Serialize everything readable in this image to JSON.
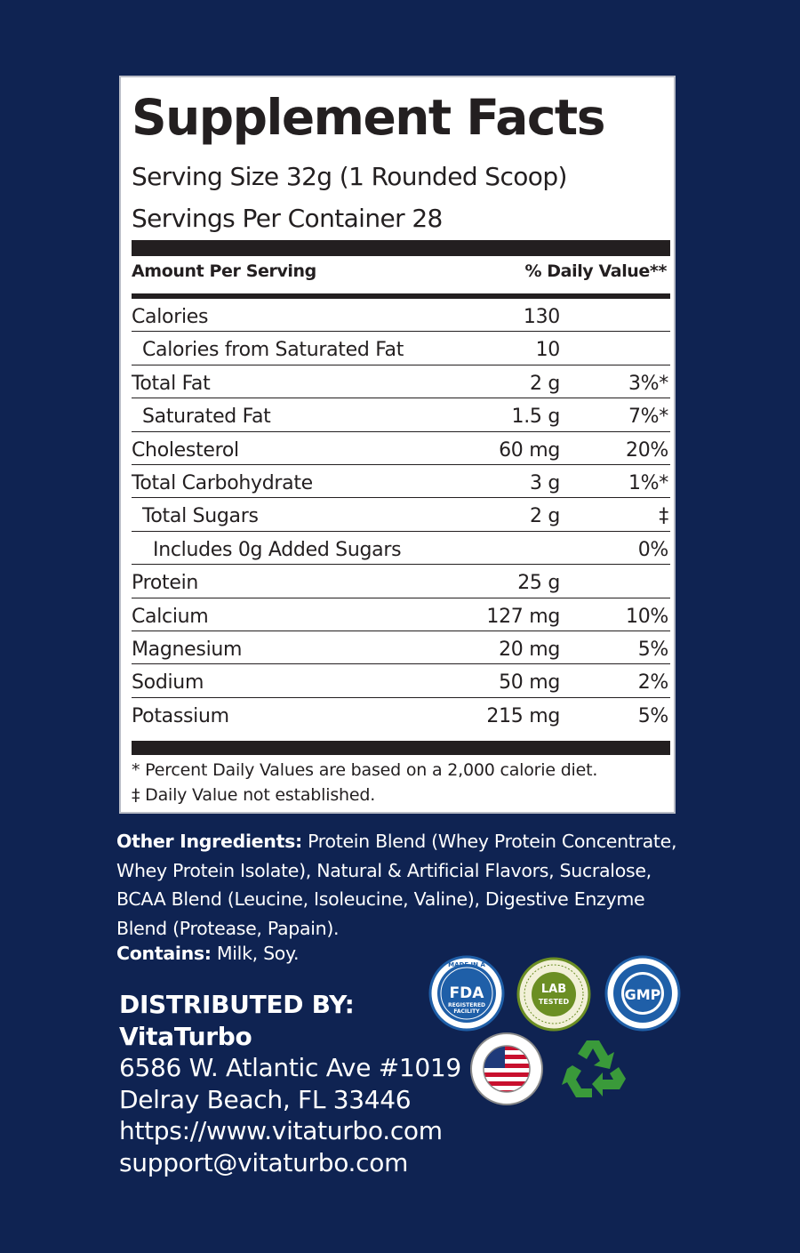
{
  "panel": {
    "title": "Supplement Facts",
    "serving_size": "Serving Size 32g (1 Rounded Scoop)",
    "servings_per_container": "Servings Per Container  28",
    "header_left": "Amount Per Serving",
    "header_right": "% Daily Value**",
    "rows": [
      {
        "name": "Calories",
        "amount": "130",
        "dv": "",
        "indent": 0
      },
      {
        "name": "Calories from Saturated Fat",
        "amount": "10",
        "dv": "",
        "indent": 1
      },
      {
        "name": "Total Fat",
        "amount": "2 g",
        "dv": "3%*",
        "indent": 0
      },
      {
        "name": "Saturated Fat",
        "amount": "1.5 g",
        "dv": "7%*",
        "indent": 1
      },
      {
        "name": "Cholesterol",
        "amount": "60 mg",
        "dv": "20%",
        "indent": 0
      },
      {
        "name": "Total Carbohydrate",
        "amount": "3 g",
        "dv": "1%*",
        "indent": 0
      },
      {
        "name": "Total Sugars",
        "amount": "2 g",
        "dv": "‡",
        "indent": 1
      },
      {
        "name": "Includes 0g Added Sugars",
        "amount": "",
        "dv": "0%",
        "indent": 2
      },
      {
        "name": "Protein",
        "amount": "25 g",
        "dv": "",
        "indent": 0
      },
      {
        "name": "Calcium",
        "amount": "127 mg",
        "dv": "10%",
        "indent": 0
      },
      {
        "name": "Magnesium",
        "amount": "20 mg",
        "dv": "5%",
        "indent": 0
      },
      {
        "name": "Sodium",
        "amount": "50 mg",
        "dv": "2%",
        "indent": 0
      },
      {
        "name": "Potassium",
        "amount": "215 mg",
        "dv": "5%",
        "indent": 0
      }
    ],
    "footnote_1": "* Percent Daily Values are based on a 2,000 calorie diet.",
    "footnote_2": "‡ Daily Value not established."
  },
  "ingredients": {
    "label": "Other Ingredients:",
    "text": " Protein Blend (Whey Protein Concentrate, Whey Protein Isolate), Natural & Artificial Flavors, Sucralose, BCAA Blend (Leucine, Isoleucine, Valine), Digestive Enzyme Blend (Protease, Papain).",
    "contains_label": "Contains:",
    "contains_text": " Milk, Soy."
  },
  "distributor": {
    "heading": "DISTRIBUTED BY:",
    "company": "VitaTurbo",
    "address_1": "6586 W. Atlantic Ave #1019",
    "address_2": "Delray Beach, FL 33446",
    "website": "https://www.vitaturbo.com",
    "email": "support@vitaturbo.com"
  },
  "badges": {
    "fda": {
      "icon": "fda-registered-facility-icon",
      "top": "MADE IN A",
      "main": "FDA",
      "sub1": "REGISTERED",
      "sub2": "FACILITY"
    },
    "lab": {
      "icon": "lab-tested-icon",
      "main1": "LAB",
      "main2": "TESTED"
    },
    "gmp": {
      "icon": "gmp-icon",
      "main": "GMP"
    },
    "usa": {
      "icon": "made-in-usa-flag-icon"
    },
    "recycle": {
      "icon": "recycle-icon"
    }
  },
  "colors": {
    "background": "#0f2352",
    "panel": "#ffffff",
    "ink": "#231f20",
    "badge_blue": "#1f5fa8",
    "badge_green": "#6b8e23",
    "recycle_green": "#3a9a3a"
  }
}
